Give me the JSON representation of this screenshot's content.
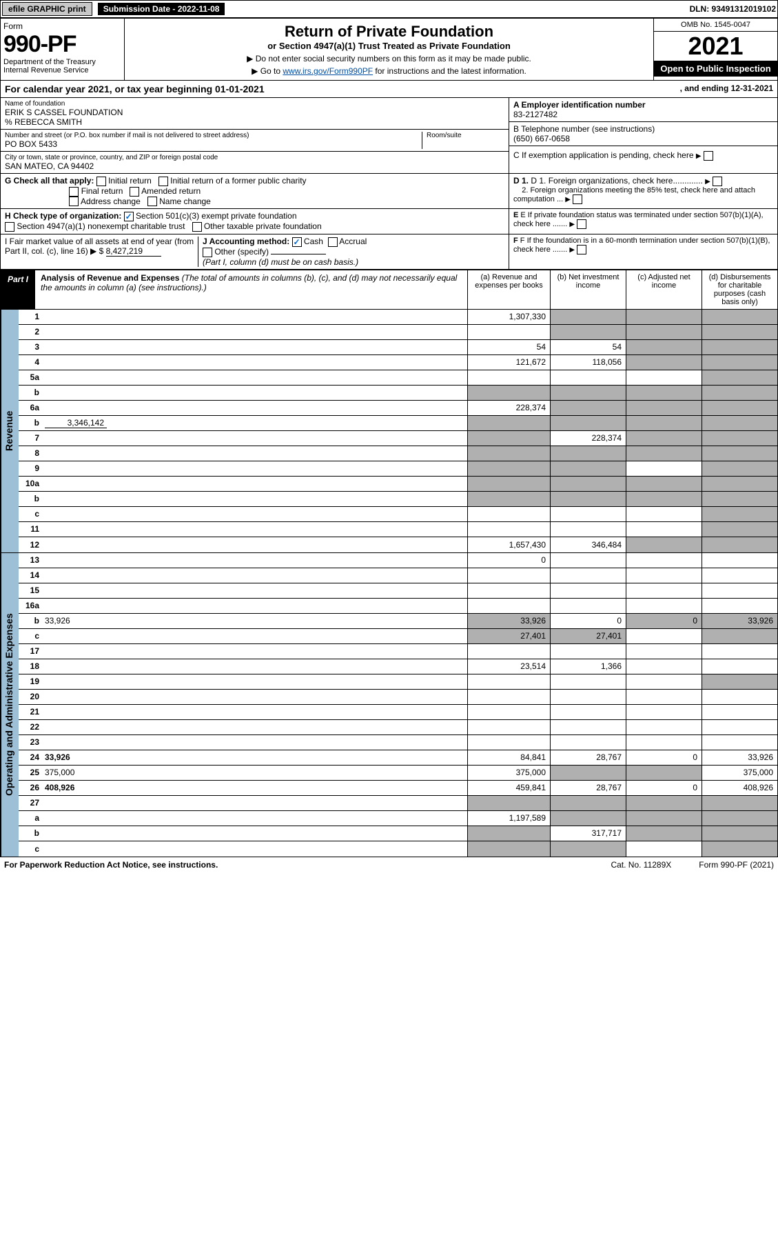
{
  "top": {
    "efile": "efile GRAPHIC print",
    "sub_label": "Submission Date - 2022-11-08",
    "dln": "DLN: 93491312019102"
  },
  "hdr": {
    "form": "Form",
    "big": "990-PF",
    "dept": "Department of the Treasury\nInternal Revenue Service",
    "title": "Return of Private Foundation",
    "sub": "or Section 4947(a)(1) Trust Treated as Private Foundation",
    "note1": "▶ Do not enter social security numbers on this form as it may be made public.",
    "note2_pre": "▶ Go to ",
    "note2_link": "www.irs.gov/Form990PF",
    "note2_post": " for instructions and the latest information.",
    "omb": "OMB No. 1545-0047",
    "year": "2021",
    "open": "Open to Public Inspection"
  },
  "cal": {
    "text": "For calendar year 2021, or tax year beginning 01-01-2021",
    "end": ", and ending 12-31-2021"
  },
  "id": {
    "name_lbl": "Name of foundation",
    "name": "ERIK S CASSEL FOUNDATION",
    "care": "% REBECCA SMITH",
    "addr_lbl": "Number and street (or P.O. box number if mail is not delivered to street address)",
    "room_lbl": "Room/suite",
    "addr": "PO BOX 5433",
    "city_lbl": "City or town, state or province, country, and ZIP or foreign postal code",
    "city": "SAN MATEO, CA  94402",
    "ein_lbl": "A Employer identification number",
    "ein": "83-2127482",
    "tel_lbl": "B Telephone number (see instructions)",
    "tel": "(650) 667-0658",
    "c": "C If exemption application is pending, check here",
    "d1": "D 1. Foreign organizations, check here.............",
    "d2": "2. Foreign organizations meeting the 85% test, check here and attach computation ...",
    "e": "E  If private foundation status was terminated under section 507(b)(1)(A), check here .......",
    "f": "F  If the foundation is in a 60-month termination under section 507(b)(1)(B), check here .......",
    "g": "G Check all that apply:",
    "g_items": [
      "Initial return",
      "Final return",
      "Address change",
      "Initial return of a former public charity",
      "Amended return",
      "Name change"
    ],
    "h": "H Check type of organization:",
    "h1": "Section 501(c)(3) exempt private foundation",
    "h2": "Section 4947(a)(1) nonexempt charitable trust",
    "h3": "Other taxable private foundation",
    "i": "I Fair market value of all assets at end of year (from Part II, col. (c), line 16) ▶ $",
    "i_val": "8,427,219",
    "j": "J Accounting method:",
    "j_cash": "Cash",
    "j_acc": "Accrual",
    "j_other": "Other (specify)",
    "j_note": "(Part I, column (d) must be on cash basis.)"
  },
  "part1": {
    "label": "Part I",
    "title": "Analysis of Revenue and Expenses",
    "desc": "(The total of amounts in columns (b), (c), and (d) may not necessarily equal the amounts in column (a) (see instructions).)",
    "ca": "(a)  Revenue and expenses per books",
    "cb": "(b)  Net investment income",
    "cc": "(c)  Adjusted net income",
    "cd": "(d)  Disbursements for charitable purposes (cash basis only)"
  },
  "revenue": {
    "label": "Revenue",
    "r": [
      {
        "n": "1",
        "d": "",
        "a": "1,307,330",
        "b": "",
        "c": ""
      },
      {
        "n": "2",
        "d": "",
        "a": "",
        "b": "",
        "c": ""
      },
      {
        "n": "3",
        "d": "",
        "a": "54",
        "b": "54",
        "c": ""
      },
      {
        "n": "4",
        "d": "",
        "a": "121,672",
        "b": "118,056",
        "c": ""
      },
      {
        "n": "5a",
        "d": "",
        "a": "",
        "b": "",
        "c": ""
      },
      {
        "n": "b",
        "d": "",
        "a": "",
        "b": "",
        "c": "",
        "sub": true
      },
      {
        "n": "6a",
        "d": "",
        "a": "228,374",
        "b": "",
        "c": ""
      },
      {
        "n": "b",
        "d": "",
        "a": "",
        "b": "",
        "c": "",
        "sub": true,
        "subval": "3,346,142"
      },
      {
        "n": "7",
        "d": "",
        "a": "",
        "b": "228,374",
        "c": ""
      },
      {
        "n": "8",
        "d": "",
        "a": "",
        "b": "",
        "c": ""
      },
      {
        "n": "9",
        "d": "",
        "a": "",
        "b": "",
        "c": ""
      },
      {
        "n": "10a",
        "d": "",
        "a": "",
        "b": "",
        "c": "",
        "sub": true
      },
      {
        "n": "b",
        "d": "",
        "a": "",
        "b": "",
        "c": "",
        "sub": true
      },
      {
        "n": "c",
        "d": "",
        "a": "",
        "b": "",
        "c": ""
      },
      {
        "n": "11",
        "d": "",
        "a": "",
        "b": "",
        "c": ""
      },
      {
        "n": "12",
        "d": "",
        "a": "1,657,430",
        "b": "346,484",
        "c": "",
        "bold": true
      }
    ]
  },
  "expenses": {
    "label": "Operating and Administrative Expenses",
    "r": [
      {
        "n": "13",
        "d": "",
        "a": "0",
        "b": "",
        "c": ""
      },
      {
        "n": "14",
        "d": "",
        "a": "",
        "b": "",
        "c": ""
      },
      {
        "n": "15",
        "d": "",
        "a": "",
        "b": "",
        "c": ""
      },
      {
        "n": "16a",
        "d": "",
        "a": "",
        "b": "",
        "c": ""
      },
      {
        "n": "b",
        "d": "33,926",
        "a": "33,926",
        "b": "0",
        "c": "0"
      },
      {
        "n": "c",
        "d": "",
        "a": "27,401",
        "b": "27,401",
        "c": ""
      },
      {
        "n": "17",
        "d": "",
        "a": "",
        "b": "",
        "c": ""
      },
      {
        "n": "18",
        "d": "",
        "a": "23,514",
        "b": "1,366",
        "c": ""
      },
      {
        "n": "19",
        "d": "",
        "a": "",
        "b": "",
        "c": ""
      },
      {
        "n": "20",
        "d": "",
        "a": "",
        "b": "",
        "c": ""
      },
      {
        "n": "21",
        "d": "",
        "a": "",
        "b": "",
        "c": ""
      },
      {
        "n": "22",
        "d": "",
        "a": "",
        "b": "",
        "c": ""
      },
      {
        "n": "23",
        "d": "",
        "a": "",
        "b": "",
        "c": ""
      },
      {
        "n": "24",
        "d": "33,926",
        "a": "84,841",
        "b": "28,767",
        "c": "0",
        "bold": true
      },
      {
        "n": "25",
        "d": "375,000",
        "a": "375,000",
        "b": "",
        "c": ""
      },
      {
        "n": "26",
        "d": "408,926",
        "a": "459,841",
        "b": "28,767",
        "c": "0",
        "bold": true
      },
      {
        "n": "27",
        "d": "",
        "a": "",
        "b": "",
        "c": "",
        "shadea": true
      },
      {
        "n": "a",
        "d": "",
        "a": "1,197,589",
        "b": "",
        "c": "",
        "bold": true
      },
      {
        "n": "b",
        "d": "",
        "a": "",
        "b": "317,717",
        "c": "",
        "bold": true
      },
      {
        "n": "c",
        "d": "",
        "a": "",
        "b": "",
        "c": "",
        "bold": true
      }
    ]
  },
  "foot": {
    "l": "For Paperwork Reduction Act Notice, see instructions.",
    "c": "Cat. No. 11289X",
    "r": "Form 990-PF (2021)"
  },
  "colors": {
    "sidebar": "#9ec0d6",
    "shade": "#b0b0b0",
    "link": "#004ea2"
  }
}
